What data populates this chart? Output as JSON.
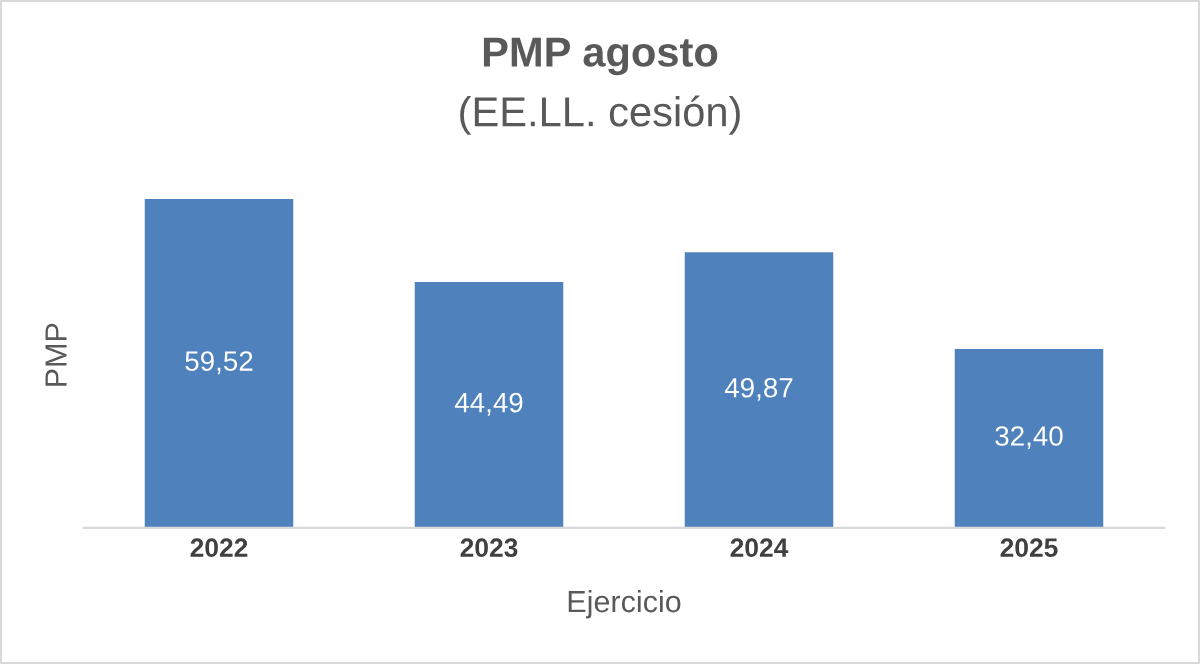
{
  "chart_data": {
    "type": "bar",
    "title": "PMP agosto",
    "subtitle": "(EE.LL. cesión)",
    "xlabel": "Ejercicio",
    "ylabel": "PMP",
    "categories": [
      "2022",
      "2023",
      "2024",
      "2025"
    ],
    "values": [
      59.52,
      44.49,
      49.87,
      32.4
    ],
    "value_labels": [
      "59,52",
      "44,49",
      "49,87",
      "32,40"
    ],
    "color": "#4f81bd",
    "tick_labels": "x",
    "grid": false,
    "legend": false
  }
}
